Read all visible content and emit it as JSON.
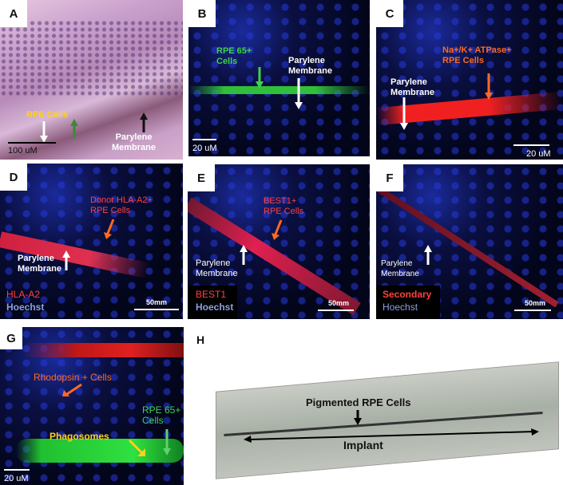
{
  "panels": {
    "A": {
      "label": "A",
      "rpe": "RPE Cells",
      "membrane": "Parylene\nMembrane",
      "scale": "100 uM"
    },
    "B": {
      "label": "B",
      "rpe": "RPE 65+\nCells",
      "membrane": "Parylene\nMembrane",
      "scale": "20 uM"
    },
    "C": {
      "label": "C",
      "rpe": "Na+/K+ ATPase+\nRPE Cells",
      "membrane": "Parylene\nMembrane",
      "scale": "20 uM"
    },
    "D": {
      "label": "D",
      "rpe": "Donor HLA-A2+\nRPE Cells",
      "membrane": "Parylene\nMembrane",
      "stain": "HLA-A2",
      "counter": "Hoechst",
      "scale": "50mm"
    },
    "E": {
      "label": "E",
      "rpe": "BEST1+\nRPE Cells",
      "membrane": "Parylene\nMembrane",
      "stain": "BEST1",
      "counter": "Hoechst",
      "scale": "50mm"
    },
    "F": {
      "label": "F",
      "membrane": "Parylene\nMembrane",
      "stain": "Secondary",
      "counter": "Hoechst",
      "scale": "50mm"
    },
    "G": {
      "label": "G",
      "rhodopsin": "Rhodopsin + Cells",
      "rpe": "RPE 65+\nCells",
      "phago": "Phagosomes",
      "scale": "20 uM"
    },
    "H": {
      "label": "H",
      "pigmented": "Pigmented RPE Cells",
      "implant": "Implant"
    }
  }
}
